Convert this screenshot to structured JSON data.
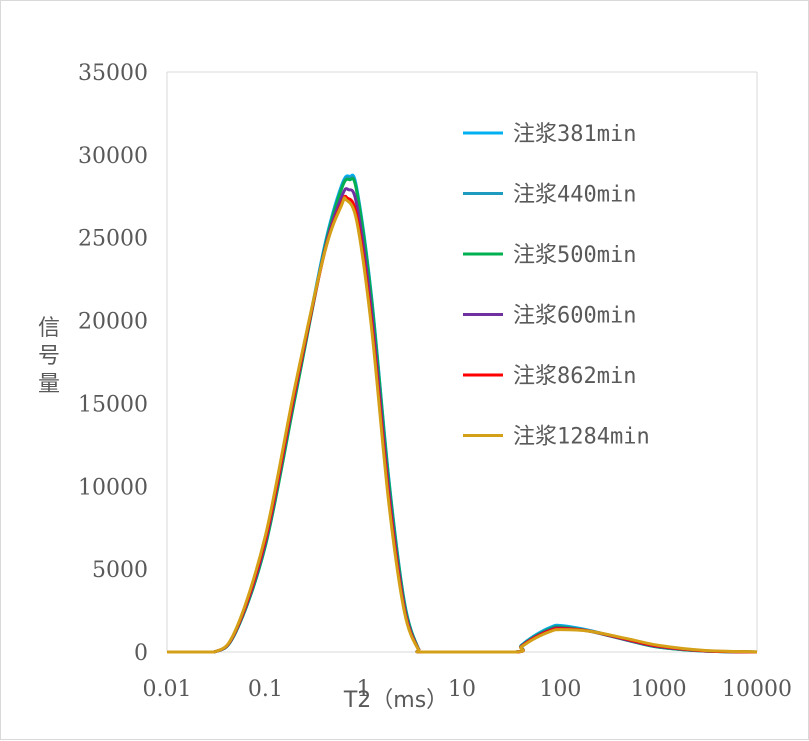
{
  "chart_data": {
    "type": "line",
    "title": "",
    "xlabel": "T2（ms）",
    "ylabel": "信号量",
    "x_scale": "log",
    "xlim": [
      0.01,
      10000
    ],
    "ylim": [
      0,
      35000
    ],
    "y_ticks": [
      "0",
      "5000",
      "10000",
      "15000",
      "20000",
      "25000",
      "30000",
      "35000"
    ],
    "x_ticks": [
      "0.01",
      "0.1",
      "1",
      "10",
      "100",
      "1000",
      "10000"
    ],
    "x_tick_values": [
      0.01,
      0.1,
      1,
      10,
      100,
      1000,
      10000
    ],
    "y_tick_values": [
      0,
      5000,
      10000,
      15000,
      20000,
      25000,
      30000,
      35000
    ],
    "grid": false,
    "legend_position": "right",
    "series": [
      {
        "name": "注浆381min",
        "color": "#00b0f0",
        "peak1": 28700,
        "peak1_x": 0.72,
        "peak2": 1600,
        "peak2_x": 100,
        "points": [
          [
            0.01,
            0
          ],
          [
            0.03,
            0
          ],
          [
            0.05,
            1200
          ],
          [
            0.1,
            6500
          ],
          [
            0.2,
            15500
          ],
          [
            0.4,
            24500
          ],
          [
            0.6,
            28200
          ],
          [
            0.72,
            28700
          ],
          [
            0.85,
            28000
          ],
          [
            1.2,
            21500
          ],
          [
            1.8,
            10500
          ],
          [
            2.6,
            3000
          ],
          [
            3.6,
            200
          ],
          [
            4.2,
            0
          ],
          [
            35,
            0
          ],
          [
            40,
            400
          ],
          [
            55,
            1000
          ],
          [
            80,
            1500
          ],
          [
            100,
            1600
          ],
          [
            200,
            1300
          ],
          [
            500,
            700
          ],
          [
            1000,
            300
          ],
          [
            3000,
            50
          ],
          [
            10000,
            0
          ]
        ]
      },
      {
        "name": "注浆440min",
        "color": "#1f9bbf",
        "peak1": 28600,
        "peak1_x": 0.72,
        "peak2": 1550,
        "peak2_x": 100,
        "points": [
          [
            0.01,
            0
          ],
          [
            0.03,
            0
          ],
          [
            0.05,
            1200
          ],
          [
            0.1,
            6400
          ],
          [
            0.2,
            15400
          ],
          [
            0.4,
            24400
          ],
          [
            0.6,
            28100
          ],
          [
            0.72,
            28600
          ],
          [
            0.85,
            27900
          ],
          [
            1.2,
            21400
          ],
          [
            1.8,
            10400
          ],
          [
            2.6,
            2950
          ],
          [
            3.6,
            200
          ],
          [
            4.2,
            0
          ],
          [
            35,
            0
          ],
          [
            40,
            380
          ],
          [
            55,
            960
          ],
          [
            80,
            1450
          ],
          [
            100,
            1550
          ],
          [
            200,
            1270
          ],
          [
            500,
            690
          ],
          [
            1000,
            290
          ],
          [
            3000,
            50
          ],
          [
            10000,
            0
          ]
        ]
      },
      {
        "name": "注浆500min",
        "color": "#00b050",
        "peak1": 28500,
        "peak1_x": 0.72,
        "peak2": 1500,
        "peak2_x": 100,
        "points": [
          [
            0.01,
            0
          ],
          [
            0.03,
            0
          ],
          [
            0.05,
            1200
          ],
          [
            0.1,
            6400
          ],
          [
            0.2,
            15300
          ],
          [
            0.4,
            24300
          ],
          [
            0.6,
            28000
          ],
          [
            0.72,
            28500
          ],
          [
            0.85,
            27800
          ],
          [
            1.2,
            21300
          ],
          [
            1.8,
            10300
          ],
          [
            2.6,
            2900
          ],
          [
            3.6,
            200
          ],
          [
            4.2,
            0
          ],
          [
            35,
            0
          ],
          [
            40,
            360
          ],
          [
            55,
            930
          ],
          [
            80,
            1400
          ],
          [
            100,
            1500
          ],
          [
            200,
            1250
          ],
          [
            500,
            680
          ],
          [
            1000,
            290
          ],
          [
            3000,
            50
          ],
          [
            10000,
            0
          ]
        ]
      },
      {
        "name": "注浆600min",
        "color": "#7030a0",
        "peak1": 27900,
        "peak1_x": 0.7,
        "peak2": 1450,
        "peak2_x": 100,
        "points": [
          [
            0.01,
            0
          ],
          [
            0.03,
            0
          ],
          [
            0.05,
            1250
          ],
          [
            0.1,
            6600
          ],
          [
            0.2,
            15600
          ],
          [
            0.4,
            24200
          ],
          [
            0.6,
            27500
          ],
          [
            0.7,
            27900
          ],
          [
            0.85,
            27000
          ],
          [
            1.2,
            20600
          ],
          [
            1.8,
            9800
          ],
          [
            2.6,
            2700
          ],
          [
            3.6,
            180
          ],
          [
            4.2,
            0
          ],
          [
            35,
            0
          ],
          [
            40,
            340
          ],
          [
            55,
            900
          ],
          [
            80,
            1350
          ],
          [
            100,
            1450
          ],
          [
            200,
            1250
          ],
          [
            500,
            700
          ],
          [
            1000,
            320
          ],
          [
            3000,
            60
          ],
          [
            10000,
            0
          ]
        ]
      },
      {
        "name": "注浆862min",
        "color": "#ff0000",
        "peak1": 27400,
        "peak1_x": 0.68,
        "peak2": 1400,
        "peak2_x": 100,
        "points": [
          [
            0.01,
            0
          ],
          [
            0.03,
            0
          ],
          [
            0.05,
            1300
          ],
          [
            0.1,
            6800
          ],
          [
            0.2,
            15800
          ],
          [
            0.4,
            24100
          ],
          [
            0.6,
            27100
          ],
          [
            0.68,
            27400
          ],
          [
            0.85,
            26300
          ],
          [
            1.2,
            19900
          ],
          [
            1.8,
            9300
          ],
          [
            2.6,
            2500
          ],
          [
            3.6,
            160
          ],
          [
            4.2,
            0
          ],
          [
            35,
            0
          ],
          [
            40,
            320
          ],
          [
            55,
            860
          ],
          [
            80,
            1300
          ],
          [
            100,
            1400
          ],
          [
            200,
            1260
          ],
          [
            500,
            740
          ],
          [
            1000,
            360
          ],
          [
            3000,
            70
          ],
          [
            10000,
            0
          ]
        ]
      },
      {
        "name": "注浆1284min",
        "color": "#d4a017",
        "peak1": 27300,
        "peak1_x": 0.66,
        "peak2": 1350,
        "peak2_x": 100,
        "points": [
          [
            0.01,
            0
          ],
          [
            0.03,
            0
          ],
          [
            0.05,
            1350
          ],
          [
            0.1,
            7000
          ],
          [
            0.2,
            16000
          ],
          [
            0.4,
            24100
          ],
          [
            0.6,
            27000
          ],
          [
            0.66,
            27300
          ],
          [
            0.85,
            26000
          ],
          [
            1.2,
            19600
          ],
          [
            1.8,
            9000
          ],
          [
            2.6,
            2400
          ],
          [
            3.6,
            150
          ],
          [
            4.2,
            0
          ],
          [
            35,
            0
          ],
          [
            40,
            300
          ],
          [
            55,
            820
          ],
          [
            80,
            1250
          ],
          [
            100,
            1350
          ],
          [
            200,
            1250
          ],
          [
            500,
            780
          ],
          [
            1000,
            400
          ],
          [
            3000,
            90
          ],
          [
            10000,
            10
          ]
        ]
      }
    ]
  }
}
